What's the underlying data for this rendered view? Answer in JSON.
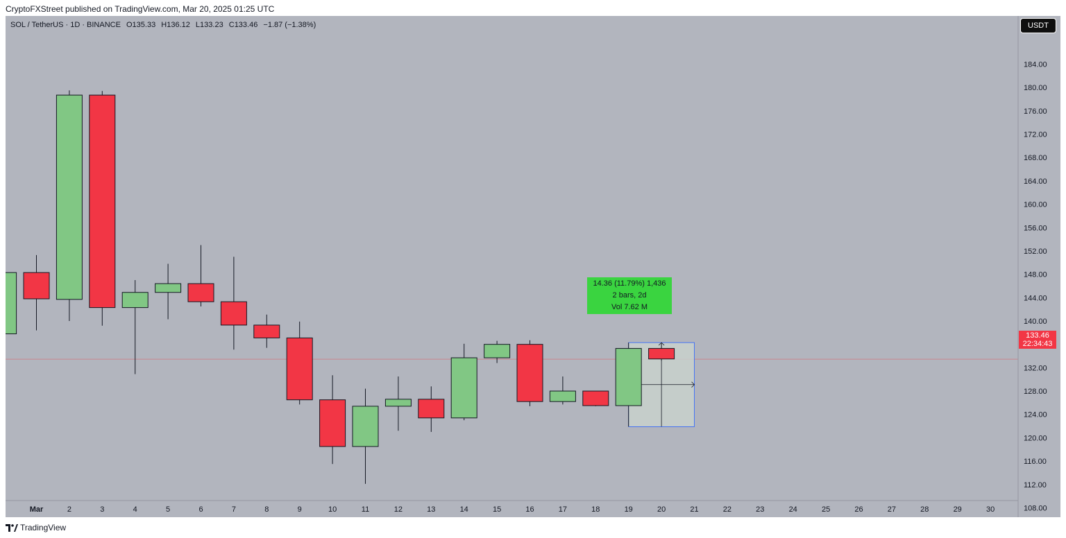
{
  "header": {
    "attribution": "CryptoFXStreet published on TradingView.com, Mar 20, 2025 01:25 UTC"
  },
  "legend": {
    "symbol": "SOL / TetherUS · 1D · BINANCE",
    "open": "O135.33",
    "high": "H136.12",
    "low": "L133.23",
    "close": "C133.46",
    "change": "−1.87 (−1.38%)"
  },
  "currency_button": "USDT",
  "price_tag": {
    "price": "133.46",
    "countdown": "22:34:43"
  },
  "measure": {
    "line1": "14.36 (11.79%) 1,436",
    "line2": "2 bars, 2d",
    "line3": "Vol 7.62 M",
    "from_low": 121.9,
    "to_high": 136.3,
    "bar_from": 18,
    "bar_to": 20
  },
  "footer": {
    "brand": "TradingView"
  },
  "colors": {
    "up": "#81c784",
    "down": "#f23645",
    "background": "#b2b5be",
    "measure": "#3ad440",
    "selection": "#c8d1cc",
    "selection_border": "#2962ff"
  },
  "chart_data": {
    "type": "candlestick",
    "title": "",
    "ylim": [
      104,
      188
    ],
    "y_ticks": [
      "108.00",
      "112.00",
      "116.00",
      "120.00",
      "124.00",
      "128.00",
      "132.00",
      "136.00",
      "140.00",
      "144.00",
      "148.00",
      "152.00",
      "156.00",
      "160.00",
      "164.00",
      "168.00",
      "172.00",
      "176.00",
      "180.00",
      "184.00"
    ],
    "x_ticks": [
      "Mar",
      "2",
      "3",
      "4",
      "5",
      "6",
      "7",
      "8",
      "9",
      "10",
      "11",
      "12",
      "13",
      "14",
      "15",
      "16",
      "17",
      "18",
      "19",
      "20",
      "21",
      "22",
      "23",
      "24",
      "25",
      "26",
      "27",
      "28",
      "29",
      "30"
    ],
    "x_partial_left": "8",
    "last_price": 133.46,
    "candles": [
      {
        "index": -1,
        "open": 137.8,
        "high": 148.3,
        "low": 137.8,
        "close": 148.3
      },
      {
        "index": 0,
        "open": 148.3,
        "high": 151.3,
        "low": 138.4,
        "close": 143.8
      },
      {
        "index": 1,
        "open": 143.7,
        "high": 179.5,
        "low": 140.0,
        "close": 178.7
      },
      {
        "index": 2,
        "open": 178.7,
        "high": 179.4,
        "low": 139.2,
        "close": 142.3
      },
      {
        "index": 3,
        "open": 142.3,
        "high": 147.0,
        "low": 130.9,
        "close": 144.9
      },
      {
        "index": 4,
        "open": 144.9,
        "high": 149.8,
        "low": 140.3,
        "close": 146.4
      },
      {
        "index": 5,
        "open": 146.4,
        "high": 153.0,
        "low": 142.5,
        "close": 143.3
      },
      {
        "index": 6,
        "open": 143.3,
        "high": 151.0,
        "low": 135.1,
        "close": 139.3
      },
      {
        "index": 7,
        "open": 139.3,
        "high": 141.1,
        "low": 135.4,
        "close": 137.1
      },
      {
        "index": 8,
        "open": 137.1,
        "high": 139.9,
        "low": 125.7,
        "close": 126.5
      },
      {
        "index": 9,
        "open": 126.5,
        "high": 130.7,
        "low": 115.5,
        "close": 118.5
      },
      {
        "index": 10,
        "open": 118.5,
        "high": 128.4,
        "low": 112.1,
        "close": 125.4
      },
      {
        "index": 11,
        "open": 125.4,
        "high": 130.5,
        "low": 121.2,
        "close": 126.6
      },
      {
        "index": 12,
        "open": 126.6,
        "high": 128.8,
        "low": 121.0,
        "close": 123.4
      },
      {
        "index": 13,
        "open": 123.4,
        "high": 136.1,
        "low": 123.0,
        "close": 133.7
      },
      {
        "index": 14,
        "open": 133.7,
        "high": 136.6,
        "low": 132.8,
        "close": 136.0
      },
      {
        "index": 15,
        "open": 136.0,
        "high": 136.7,
        "low": 125.4,
        "close": 126.2
      },
      {
        "index": 16,
        "open": 126.2,
        "high": 130.5,
        "low": 125.7,
        "close": 128.0
      },
      {
        "index": 17,
        "open": 128.0,
        "high": 128.0,
        "low": 125.4,
        "close": 125.5
      },
      {
        "index": 18,
        "open": 125.5,
        "high": 136.3,
        "low": 121.9,
        "close": 135.3
      },
      {
        "index": 19,
        "open": 135.3,
        "high": 136.1,
        "low": 133.2,
        "close": 133.5
      }
    ]
  }
}
